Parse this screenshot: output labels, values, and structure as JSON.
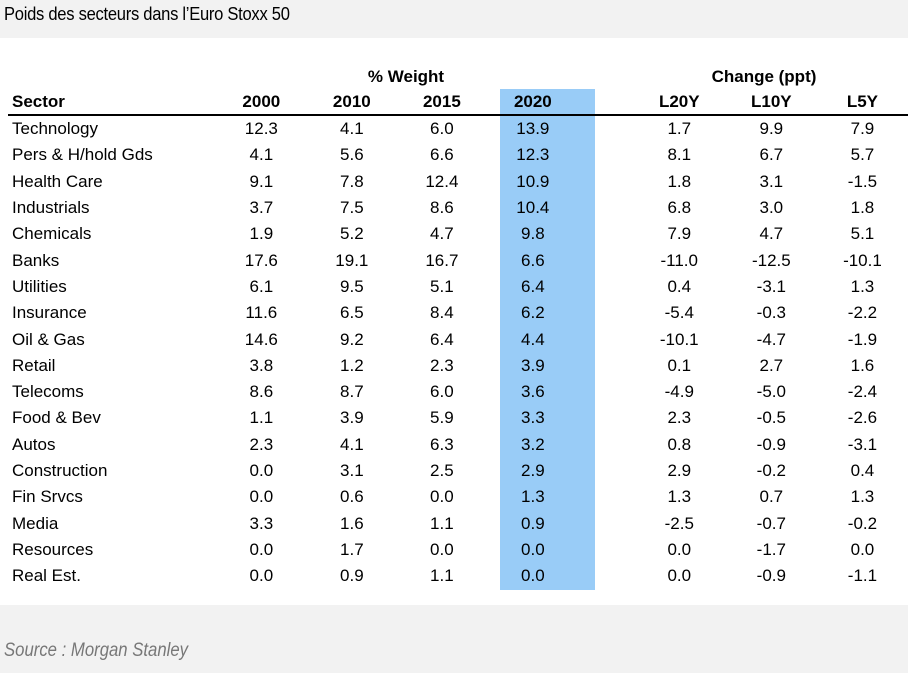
{
  "title": "Poids des secteurs dans l’Euro Stoxx 50",
  "group_headers": {
    "weight": "% Weight",
    "change": "Change (ppt)"
  },
  "columns": [
    "Sector",
    "2000",
    "2010",
    "2015",
    "2020",
    "",
    "L20Y",
    "L10Y",
    "L5Y"
  ],
  "highlight_color": "#99ccf7",
  "rows": [
    [
      "Technology",
      "12.3",
      "4.1",
      "6.0",
      "13.9",
      "1.7",
      "9.9",
      "7.9"
    ],
    [
      "Pers & H/hold Gds",
      "4.1",
      "5.6",
      "6.6",
      "12.3",
      "8.1",
      "6.7",
      "5.7"
    ],
    [
      "Health Care",
      "9.1",
      "7.8",
      "12.4",
      "10.9",
      "1.8",
      "3.1",
      "-1.5"
    ],
    [
      "Industrials",
      "3.7",
      "7.5",
      "8.6",
      "10.4",
      "6.8",
      "3.0",
      "1.8"
    ],
    [
      "Chemicals",
      "1.9",
      "5.2",
      "4.7",
      "9.8",
      "7.9",
      "4.7",
      "5.1"
    ],
    [
      "Banks",
      "17.6",
      "19.1",
      "16.7",
      "6.6",
      "-11.0",
      "-12.5",
      "-10.1"
    ],
    [
      "Utilities",
      "6.1",
      "9.5",
      "5.1",
      "6.4",
      "0.4",
      "-3.1",
      "1.3"
    ],
    [
      "Insurance",
      "11.6",
      "6.5",
      "8.4",
      "6.2",
      "-5.4",
      "-0.3",
      "-2.2"
    ],
    [
      "Oil & Gas",
      "14.6",
      "9.2",
      "6.4",
      "4.4",
      "-10.1",
      "-4.7",
      "-1.9"
    ],
    [
      "Retail",
      "3.8",
      "1.2",
      "2.3",
      "3.9",
      "0.1",
      "2.7",
      "1.6"
    ],
    [
      "Telecoms",
      "8.6",
      "8.7",
      "6.0",
      "3.6",
      "-4.9",
      "-5.0",
      "-2.4"
    ],
    [
      "Food & Bev",
      "1.1",
      "3.9",
      "5.9",
      "3.3",
      "2.3",
      "-0.5",
      "-2.6"
    ],
    [
      "Autos",
      "2.3",
      "4.1",
      "6.3",
      "3.2",
      "0.8",
      "-0.9",
      "-3.1"
    ],
    [
      "Construction",
      "0.0",
      "3.1",
      "2.5",
      "2.9",
      "2.9",
      "-0.2",
      "0.4"
    ],
    [
      "Fin Srvcs",
      "0.0",
      "0.6",
      "0.0",
      "1.3",
      "1.3",
      "0.7",
      "1.3"
    ],
    [
      "Media",
      "3.3",
      "1.6",
      "1.1",
      "0.9",
      "-2.5",
      "-0.7",
      "-0.2"
    ],
    [
      "Resources",
      "0.0",
      "1.7",
      "0.0",
      "0.0",
      "0.0",
      "-1.7",
      "0.0"
    ],
    [
      "Real Est.",
      "0.0",
      "0.9",
      "1.1",
      "0.0",
      "0.0",
      "-0.9",
      "-1.1"
    ]
  ],
  "source": "Source : Morgan Stanley"
}
